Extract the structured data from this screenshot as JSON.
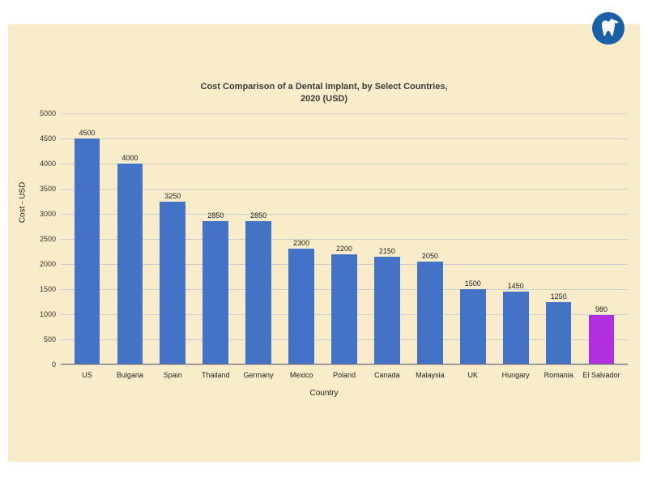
{
  "chart": {
    "type": "bar",
    "title": "Cost Comparison of a Dental Implant, by Select Countries,\n2020 (USD)",
    "xlabel": "Country",
    "ylabel": "Cost - USD",
    "background_color": "#f9ecca",
    "grid_color": "#cfcfcf",
    "ylim": [
      0,
      5000
    ],
    "ytick_step": 500,
    "yticks": [
      0,
      500,
      1000,
      1500,
      2000,
      2500,
      3000,
      3500,
      4000,
      4500,
      5000
    ],
    "title_fontsize": 11,
    "label_fontsize": 10,
    "tick_fontsize": 9,
    "bar_width": 0.6,
    "default_bar_color": "#4472c4",
    "highlight_bar_color": "#b030e0",
    "categories": [
      "US",
      "Bulgaria",
      "Spain",
      "Thailand",
      "Germany",
      "Mexico",
      "Poland",
      "Canada",
      "Malaysia",
      "UK",
      "Hungary",
      "Romania",
      "El Salvador"
    ],
    "values": [
      4500,
      4000,
      3250,
      2850,
      2850,
      2300,
      2200,
      2150,
      2050,
      1500,
      1450,
      1250,
      980
    ],
    "bar_colors": [
      "#4472c4",
      "#4472c4",
      "#4472c4",
      "#4472c4",
      "#4472c4",
      "#4472c4",
      "#4472c4",
      "#4472c4",
      "#4472c4",
      "#4472c4",
      "#4472c4",
      "#4472c4",
      "#b030e0"
    ]
  },
  "logo": {
    "name": "dental-travel-logo",
    "circle_color": "#1b5fa8",
    "accent_color": "#ffffff"
  }
}
